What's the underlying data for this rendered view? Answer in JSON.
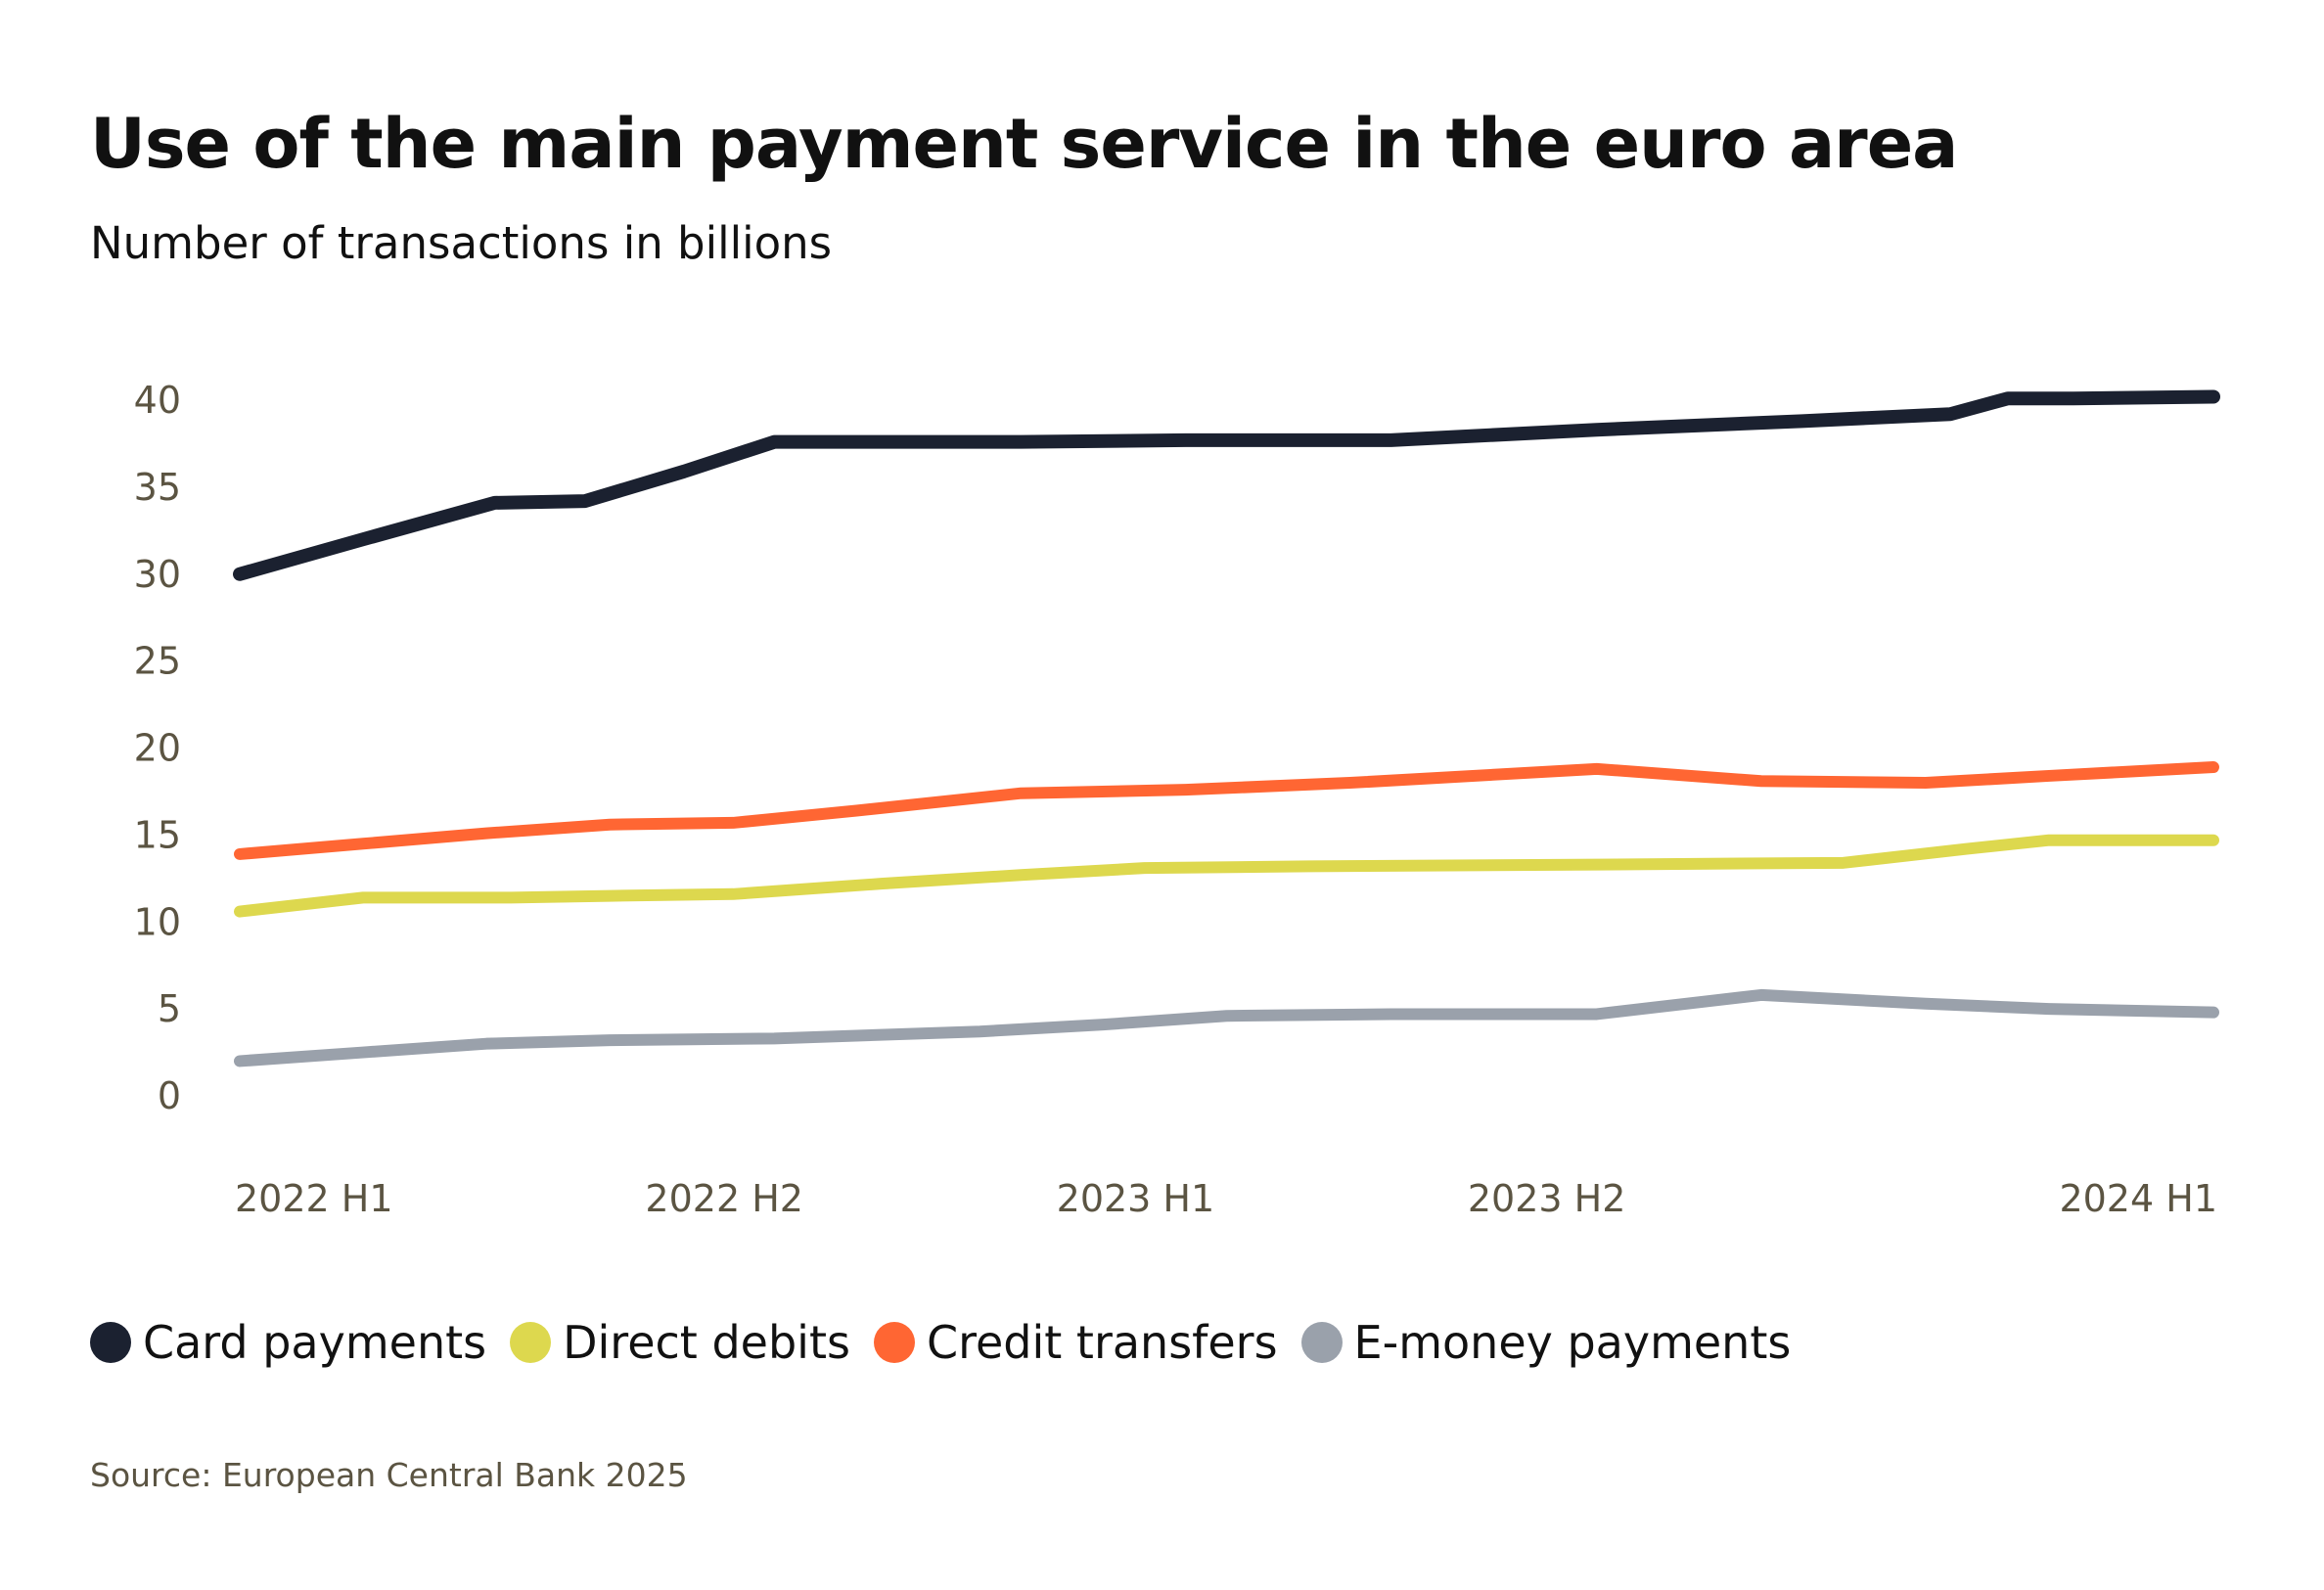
{
  "title": "Use of the main payment service in the euro area",
  "subtitle": "Number of transactions in billions",
  "source": "Source: European Central Bank 2025",
  "chart_data": {
    "type": "line",
    "title": "Use of the main payment service in the euro area",
    "subtitle": "Number of transactions in billions",
    "xlabel": "",
    "ylabel": "",
    "x": [
      "2022 H1",
      "",
      "",
      "",
      "",
      "2022 H2",
      "",
      "",
      "",
      "",
      "2023 H1",
      "",
      "",
      "",
      "",
      "2023 H2",
      "",
      "",
      "",
      "",
      "2024 H1",
      "",
      "",
      ""
    ],
    "x_ticks": [
      "2022 H1",
      "2022 H2",
      "2023 H1",
      "2023 H2",
      "2024 H1"
    ],
    "y_ticks": [
      0,
      5,
      10,
      15,
      20,
      25,
      30,
      35,
      40
    ],
    "ylim": [
      0,
      40
    ],
    "grid": false,
    "legend_position": "bottom-left",
    "series": [
      {
        "name": "Card payments",
        "color": "#1b2130",
        "points": [
          [
            0,
            30.0
          ],
          [
            1.5,
            32.0
          ],
          [
            3.1,
            34.1
          ],
          [
            4.2,
            34.2
          ],
          [
            5.4,
            35.9
          ],
          [
            6.5,
            37.6
          ],
          [
            9.5,
            37.6
          ],
          [
            11.5,
            37.7
          ],
          [
            14.0,
            37.7
          ],
          [
            16.5,
            38.3
          ],
          [
            19.0,
            38.8
          ],
          [
            20.8,
            39.2
          ],
          [
            21.5,
            40.1
          ],
          [
            22.3,
            40.1
          ],
          [
            24.0,
            40.2
          ]
        ]
      },
      {
        "name": "Direct debits",
        "color": "#ddd84e",
        "points": [
          [
            0,
            10.6
          ],
          [
            1.5,
            11.4
          ],
          [
            3.3,
            11.4
          ],
          [
            4.5,
            11.5
          ],
          [
            6.0,
            11.6
          ],
          [
            7.8,
            12.2
          ],
          [
            9.5,
            12.7
          ],
          [
            11.0,
            13.1
          ],
          [
            13.0,
            13.2
          ],
          [
            16.5,
            13.3
          ],
          [
            19.5,
            13.4
          ],
          [
            21.0,
            14.2
          ],
          [
            22.0,
            14.7
          ],
          [
            23.5,
            14.7
          ],
          [
            24.0,
            14.7
          ]
        ]
      },
      {
        "name": "Credit transfers",
        "color": "#ff6633",
        "points": [
          [
            0,
            13.9
          ],
          [
            1.5,
            14.5
          ],
          [
            3.0,
            15.1
          ],
          [
            4.5,
            15.6
          ],
          [
            6.0,
            15.7
          ],
          [
            7.5,
            16.4
          ],
          [
            9.5,
            17.4
          ],
          [
            11.5,
            17.6
          ],
          [
            13.5,
            18.0
          ],
          [
            16.5,
            18.8
          ],
          [
            18.5,
            18.1
          ],
          [
            20.5,
            18.0
          ],
          [
            22.0,
            18.4
          ],
          [
            24.0,
            18.9
          ]
        ]
      },
      {
        "name": "E-money payments",
        "color": "#9aa1ab",
        "points": [
          [
            0,
            2.0
          ],
          [
            1.5,
            2.5
          ],
          [
            3.0,
            3.0
          ],
          [
            4.5,
            3.2
          ],
          [
            6.5,
            3.3
          ],
          [
            9.0,
            3.7
          ],
          [
            10.5,
            4.1
          ],
          [
            12.0,
            4.6
          ],
          [
            14.0,
            4.7
          ],
          [
            16.5,
            4.7
          ],
          [
            18.5,
            5.8
          ],
          [
            20.5,
            5.3
          ],
          [
            22.0,
            5.0
          ],
          [
            24.0,
            4.8
          ]
        ]
      }
    ]
  }
}
